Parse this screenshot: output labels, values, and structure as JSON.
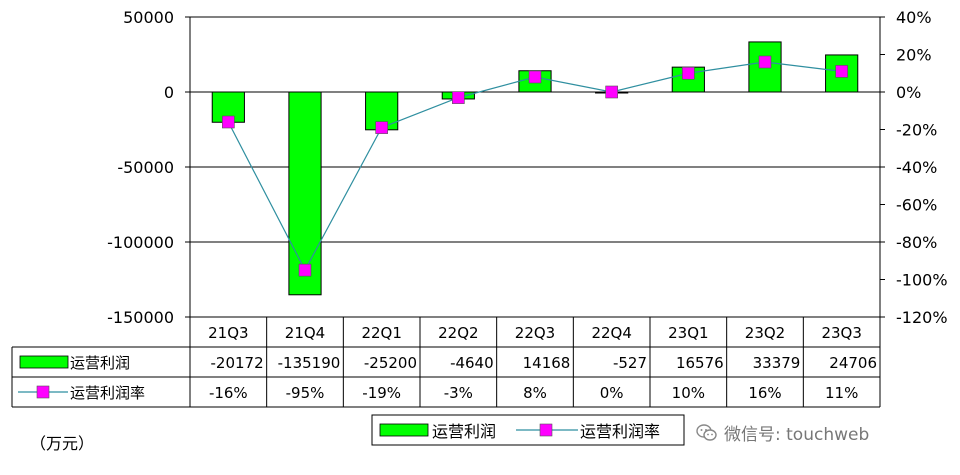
{
  "chart_data": {
    "type": "bar+line",
    "categories": [
      "21Q3",
      "21Q4",
      "22Q1",
      "22Q2",
      "22Q3",
      "22Q4",
      "23Q1",
      "23Q2",
      "23Q3"
    ],
    "series": [
      {
        "name": "运营利润",
        "type": "bar",
        "axis": "left",
        "values": [
          -20172,
          -135190,
          -25200,
          -4640,
          14168,
          -527,
          16576,
          33379,
          24706
        ],
        "display": [
          "-20172",
          "-135190",
          "-25200",
          "-4640",
          "14168",
          "-527",
          "16576",
          "33379",
          "24706"
        ]
      },
      {
        "name": "运营利润率",
        "type": "line",
        "axis": "right",
        "values": [
          -16,
          -95,
          -19,
          -3,
          8,
          0,
          10,
          16,
          11
        ],
        "display": [
          "-16%",
          "-95%",
          "-19%",
          "-3%",
          "8%",
          "0%",
          "10%",
          "16%",
          "11%"
        ]
      }
    ],
    "y_left": {
      "min": -150000,
      "max": 50000,
      "step": 50000,
      "ticks": [
        "50000",
        "0",
        "-50000",
        "-100000",
        "-150000"
      ]
    },
    "y_right": {
      "min": -120,
      "max": 40,
      "step": 20,
      "ticks": [
        "40%",
        "20%",
        "0%",
        "-20%",
        "-40%",
        "-60%",
        "-80%",
        "-100%",
        "-120%"
      ]
    },
    "legend": {
      "placement": "bottom-center",
      "entries": [
        "运营利润",
        "运营利润率"
      ]
    },
    "unit_label": "（万元）",
    "grid": true,
    "colors": {
      "bar": "#00ff00",
      "bar_edge": "#000000",
      "line": "#2f8fa0",
      "marker": "#ff00ff"
    }
  },
  "watermark": {
    "text": "微信号: touchweb",
    "icon": "wechat-icon"
  }
}
